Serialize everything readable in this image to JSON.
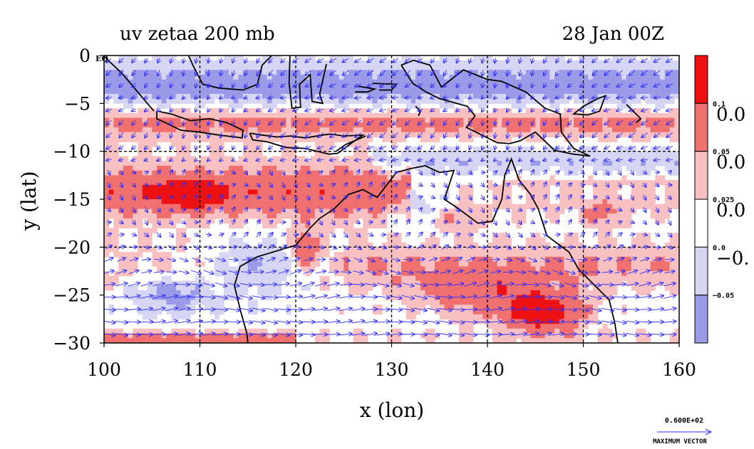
{
  "chart_data": {
    "type": "heatmap",
    "title_left": "uv zetaa 200 mb",
    "title_right": "28 Jan 00Z",
    "xlabel": "x (lon)",
    "ylabel": "y (lat)",
    "xlim": [
      100,
      160
    ],
    "ylim": [
      -30,
      0
    ],
    "x_ticks": [
      "100",
      "110",
      "120",
      "130",
      "140",
      "150",
      "160"
    ],
    "y_ticks": [
      "0",
      "−5",
      "−10",
      "−15",
      "−20",
      "−25",
      "−30"
    ],
    "y_tick_values": [
      0,
      -5,
      -10,
      -15,
      -20,
      -25,
      -30
    ],
    "x_tick_values": [
      100,
      110,
      120,
      130,
      140,
      150,
      160
    ],
    "eq_label": "EQ",
    "grid": true,
    "colorbar": {
      "levels_labels": [
        "0.1",
        "0.05",
        "0.025",
        "0.0",
        "−0.05"
      ],
      "big_labels": [
        "0.0",
        "0.0",
        "0.0",
        "−0."
      ],
      "colors": [
        "#ee1111",
        "#f07070",
        "#f8c0c0",
        "#ffffff",
        "#d6d6f4",
        "#9a9ae8"
      ]
    },
    "vector_legend": {
      "value": "0.600E+02",
      "label": "MAXIMUM VECTOR"
    },
    "contour_colors": {
      "positive": "#e82020",
      "negative": "#8080e0",
      "vectors": "#2c2cff",
      "coast": "#000000"
    }
  }
}
